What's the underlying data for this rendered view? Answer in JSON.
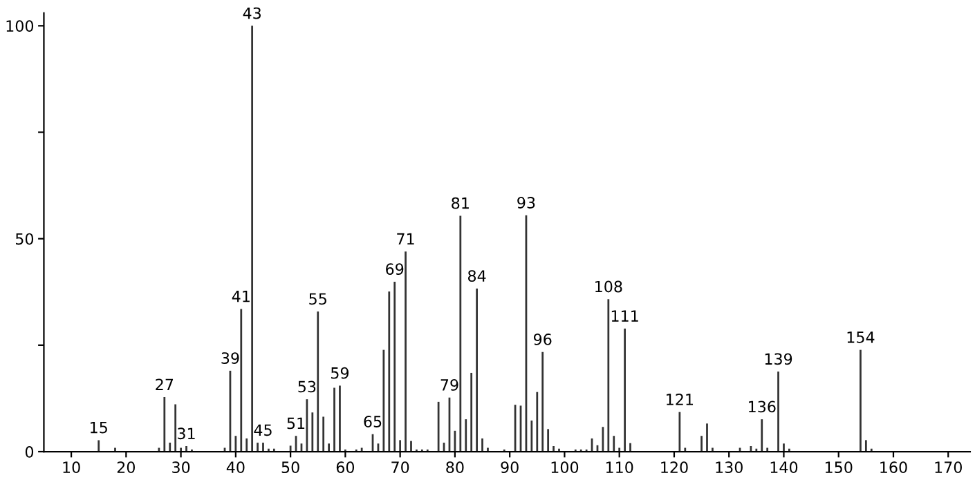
{
  "chart_data": {
    "type": "bar",
    "x": [
      15,
      17,
      18,
      26,
      27,
      28,
      29,
      30,
      31,
      32,
      37,
      38,
      39,
      40,
      41,
      42,
      43,
      44,
      45,
      46,
      47,
      50,
      51,
      52,
      53,
      54,
      55,
      56,
      57,
      58,
      59,
      60,
      62,
      63,
      64,
      65,
      66,
      67,
      68,
      69,
      70,
      71,
      72,
      73,
      74,
      75,
      77,
      78,
      79,
      80,
      81,
      82,
      83,
      84,
      85,
      86,
      89,
      91,
      92,
      93,
      94,
      95,
      96,
      97,
      98,
      99,
      102,
      103,
      104,
      105,
      106,
      107,
      108,
      109,
      110,
      111,
      112,
      121,
      122,
      125,
      126,
      127,
      132,
      134,
      135,
      136,
      137,
      139,
      140,
      141,
      154,
      155,
      156
    ],
    "series": [
      {
        "color": "#333333",
        "values": [
          2.7,
          null,
          0.9,
          0.9,
          12.8,
          2.1,
          11.1,
          0.9,
          1.3,
          0.5,
          null,
          0.9,
          19.0,
          3.7,
          33.5,
          3.1,
          100,
          2.1,
          2.1,
          0.7,
          0.7,
          1.4,
          3.7,
          1.9,
          12.3,
          9.2,
          32.9,
          8.2,
          1.9,
          15.0,
          15.5,
          0.5,
          0.5,
          0.9,
          null,
          4.1,
          1.9,
          23.9,
          37.6,
          39.9,
          2.7,
          47.0,
          2.5,
          0.5,
          0.5,
          0.5,
          11.7,
          2.1,
          12.7,
          4.9,
          55.4,
          7.6,
          18.5,
          38.3,
          3.1,
          0.9,
          0.5,
          11.0,
          10.8,
          55.5,
          7.3,
          14.0,
          23.4,
          5.3,
          1.3,
          0.7,
          0.5,
          0.5,
          0.5,
          3.1,
          1.5,
          5.8,
          35.8,
          3.7,
          0.9,
          28.9,
          2.0,
          9.3,
          0.9,
          3.7,
          6.6,
          0.9,
          0.9,
          1.3,
          0.7,
          7.6,
          0.9,
          18.8,
          1.9,
          0.7,
          23.9,
          2.7,
          0.7
        ]
      }
    ],
    "annotations": [
      {
        "text": "15",
        "x": 15,
        "y": 2.7
      },
      {
        "text": "27",
        "x": 27,
        "y": 12.8
      },
      {
        "text": "31",
        "x": 31,
        "y": 1.3
      },
      {
        "text": "39",
        "x": 39,
        "y": 19.0
      },
      {
        "text": "41",
        "x": 41,
        "y": 33.5
      },
      {
        "text": "43",
        "x": 43,
        "y": 100
      },
      {
        "text": "45",
        "x": 45,
        "y": 2.1
      },
      {
        "text": "51",
        "x": 51,
        "y": 3.7
      },
      {
        "text": "53",
        "x": 53,
        "y": 12.3
      },
      {
        "text": "55",
        "x": 55,
        "y": 32.9
      },
      {
        "text": "59",
        "x": 59,
        "y": 15.5
      },
      {
        "text": "65",
        "x": 65,
        "y": 4.1
      },
      {
        "text": "69",
        "x": 69,
        "y": 39.9
      },
      {
        "text": "71",
        "x": 71,
        "y": 47.0
      },
      {
        "text": "79",
        "x": 79,
        "y": 12.7
      },
      {
        "text": "81",
        "x": 81,
        "y": 55.4
      },
      {
        "text": "84",
        "x": 84,
        "y": 38.3
      },
      {
        "text": "93",
        "x": 93,
        "y": 55.5
      },
      {
        "text": "96",
        "x": 96,
        "y": 23.4
      },
      {
        "text": "108",
        "x": 108,
        "y": 35.8
      },
      {
        "text": "111",
        "x": 111,
        "y": 28.9
      },
      {
        "text": "121",
        "x": 121,
        "y": 9.3
      },
      {
        "text": "136",
        "x": 136,
        "y": 7.6
      },
      {
        "text": "139",
        "x": 139,
        "y": 18.8
      },
      {
        "text": "154",
        "x": 154,
        "y": 23.9
      }
    ],
    "xlim": [
      5,
      174
    ],
    "ylim": [
      0,
      103
    ],
    "xticks": [
      10,
      20,
      30,
      40,
      50,
      60,
      70,
      80,
      90,
      100,
      110,
      120,
      130,
      140,
      150,
      160,
      170
    ],
    "yticks": [
      0,
      {
        "value": 25,
        "label": null
      },
      50,
      {
        "value": 75,
        "label": null
      },
      100
    ],
    "grid": false,
    "legend": false
  }
}
